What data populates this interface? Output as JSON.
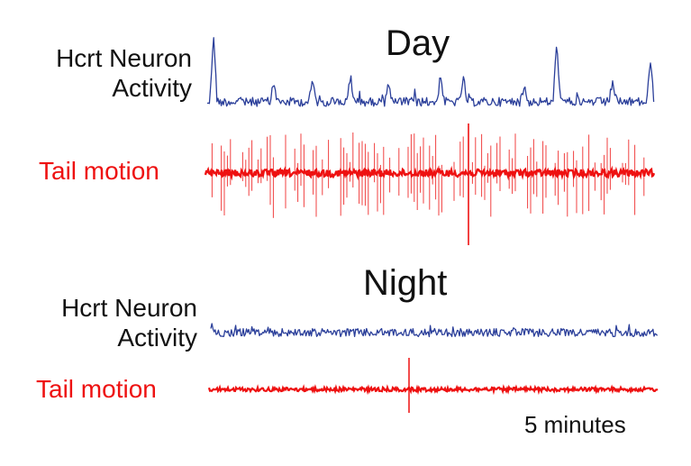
{
  "panels": {
    "day": {
      "title": "Day",
      "neuron_label_line1": "Hcrt Neuron",
      "neuron_label_line2": "Activity",
      "tail_label": "Tail motion"
    },
    "night": {
      "title": "Night",
      "neuron_label_line1": "Hcrt Neuron",
      "neuron_label_line2": "Activity",
      "tail_label": "Tail motion"
    }
  },
  "scale_bar": {
    "label": "5 minutes"
  },
  "colors": {
    "neuron_trace": "#2b3f9a",
    "tail_trace": "#ee1111",
    "text": "#111111"
  }
}
